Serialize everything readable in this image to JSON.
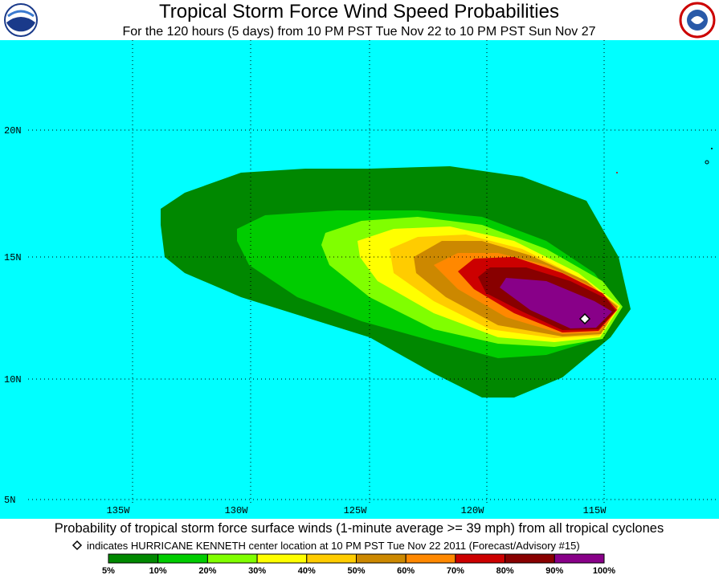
{
  "header": {
    "title": "Tropical Storm Force Wind Speed Probabilities",
    "subtitle": "For the 120 hours (5 days) from 10 PM PST Tue Nov 22 to 10 PM PST Sun Nov 27"
  },
  "map": {
    "lat_labels": [
      "20N",
      "15N",
      "10N",
      "5N"
    ],
    "lon_labels": [
      "135W",
      "130W",
      "125W",
      "120W",
      "115W"
    ]
  },
  "footer": {
    "caption": "Probability of tropical storm force surface winds (1-minute average >= 39 mph) from all tropical cyclones",
    "note": "indicates HURRICANE KENNETH center location at 10 PM PST Tue Nov 22 2011 (Forecast/Advisory #15)"
  },
  "legend": {
    "colors": [
      "#008800",
      "#00cc00",
      "#80ff00",
      "#ffff00",
      "#ffcc00",
      "#cc8800",
      "#ff8800",
      "#cc0000",
      "#880000",
      "#880088"
    ],
    "labels": [
      "5%",
      "10%",
      "20%",
      "30%",
      "40%",
      "50%",
      "60%",
      "70%",
      "80%",
      "90%",
      "100%"
    ]
  }
}
